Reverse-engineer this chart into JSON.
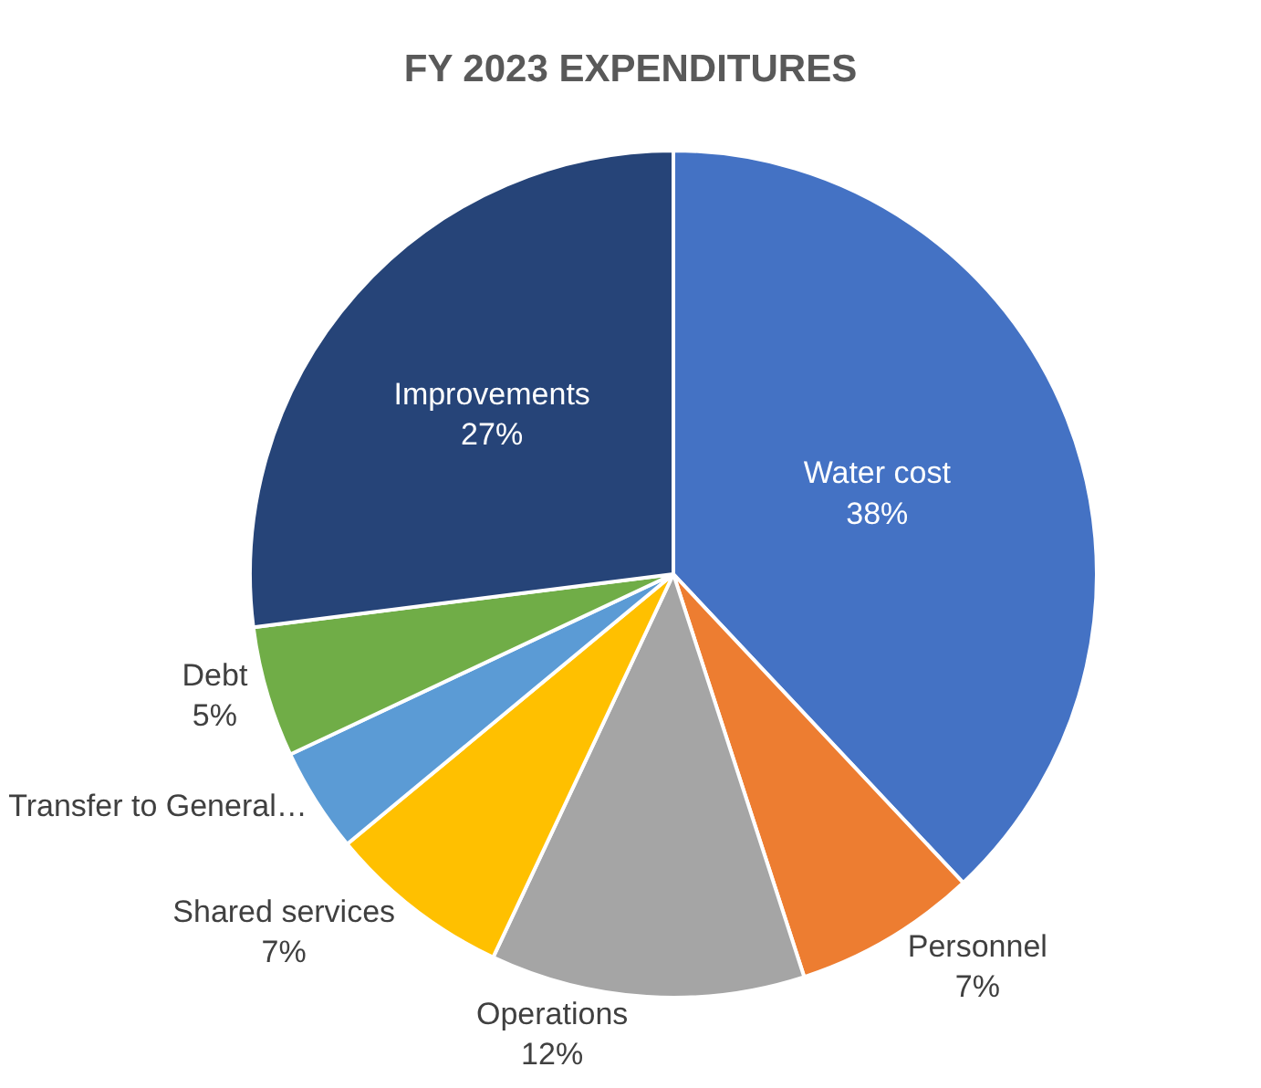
{
  "chart_data": {
    "type": "pie",
    "title": "FY 2023 EXPENDITURES",
    "categories": [
      "Water cost",
      "Personnel",
      "Operations",
      "Shared services",
      "Transfer to General…",
      "Debt",
      "Improvements"
    ],
    "values": [
      38,
      7,
      12,
      7,
      4,
      5,
      27
    ],
    "value_labels": [
      "38%",
      "7%",
      "12%",
      "7%",
      null,
      "5%",
      "27%"
    ],
    "colors": [
      "#4472c4",
      "#ed7d31",
      "#a5a5a5",
      "#ffc000",
      "#5b9bd5",
      "#70ad47",
      "#264478"
    ],
    "legend": false
  }
}
